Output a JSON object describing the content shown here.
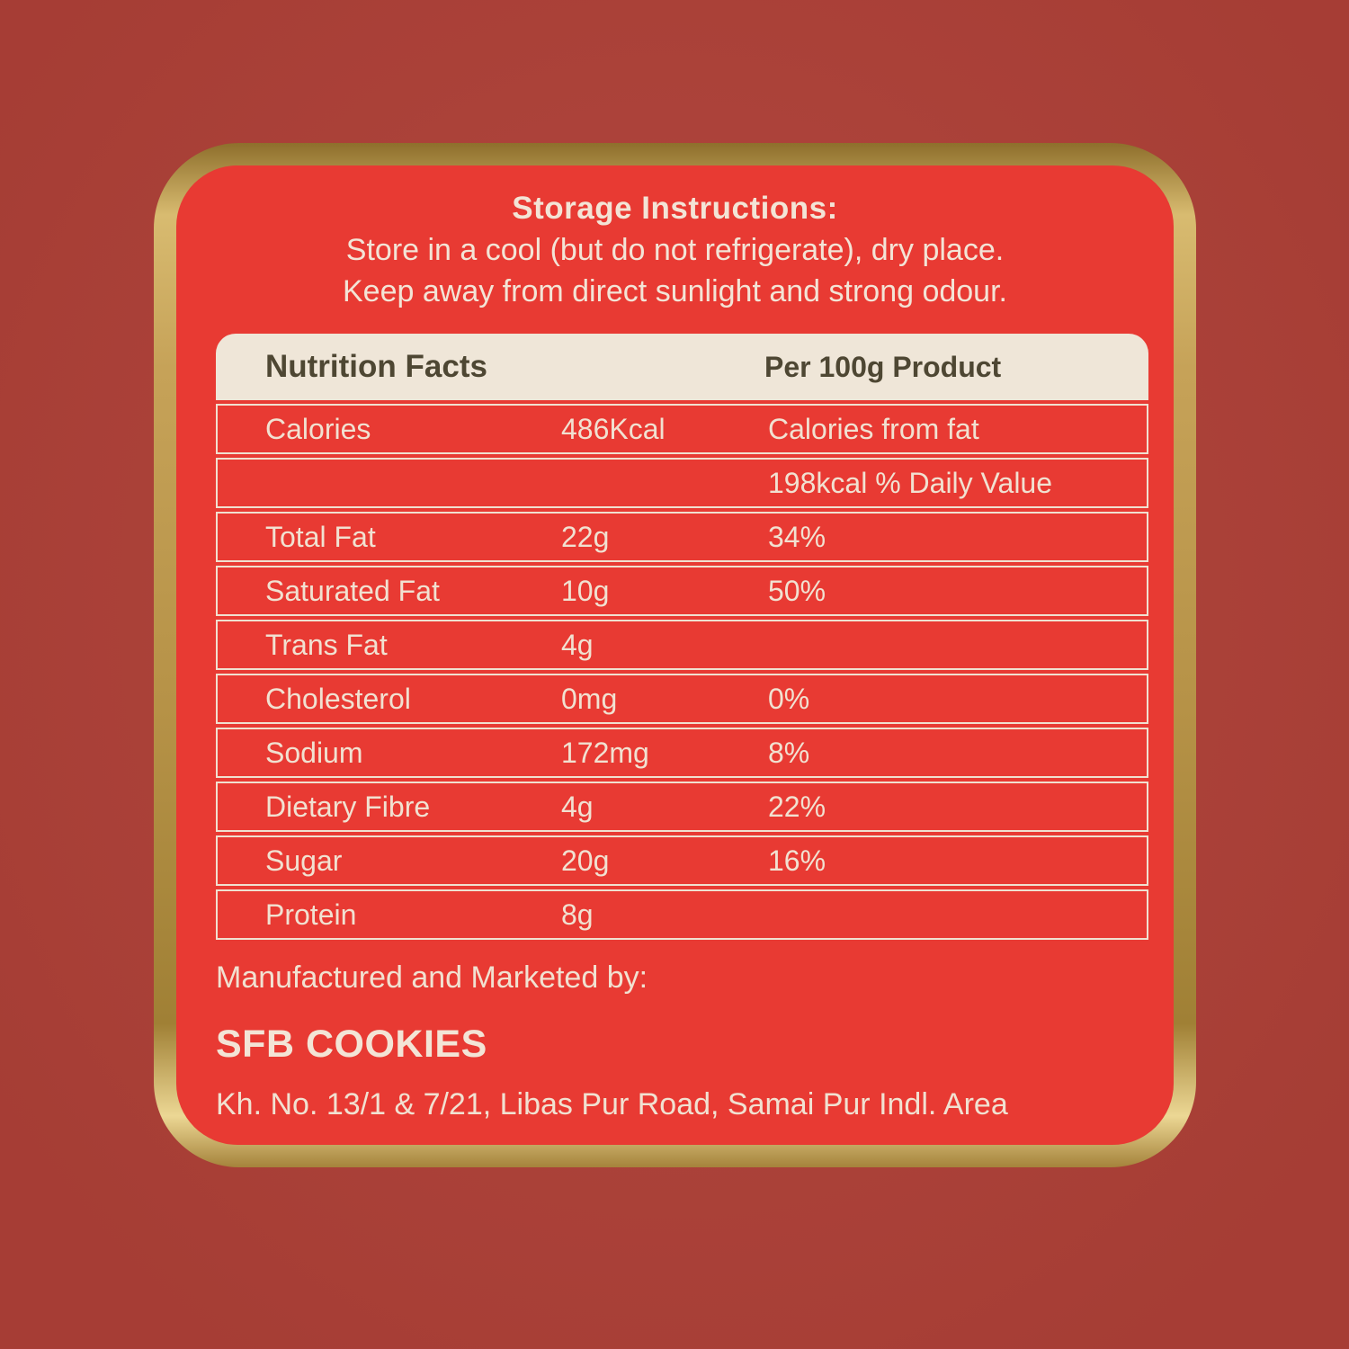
{
  "colors": {
    "background": "#b04138",
    "panel_red": "#e83a33",
    "gold_light": "#ecd794",
    "gold_dark": "#8e6f2c",
    "cream_text": "#f1e1d1",
    "table_header_bg": "#efe6d8",
    "table_header_text": "#4e4733"
  },
  "storage": {
    "title": "Storage Instructions:",
    "lines": [
      "Store in a cool (but do not refrigerate), dry place.",
      "Keep away from direct sunlight and strong odour."
    ]
  },
  "nutrition": {
    "header": {
      "left": "Nutrition Facts",
      "right": "Per 100g Product"
    },
    "rows": [
      {
        "label": "Calories",
        "amount": "486Kcal",
        "extra": "Calories from fat"
      },
      {
        "label": "",
        "amount": "",
        "extra": "198kcal % Daily Value"
      },
      {
        "label": "Total Fat",
        "amount": "22g",
        "extra": "34%"
      },
      {
        "label": "Saturated Fat",
        "amount": "10g",
        "extra": "50%"
      },
      {
        "label": "Trans Fat",
        "amount": "4g",
        "extra": ""
      },
      {
        "label": "Cholesterol",
        "amount": "0mg",
        "extra": "0%"
      },
      {
        "label": "Sodium",
        "amount": "172mg",
        "extra": "8%"
      },
      {
        "label": "Dietary Fibre",
        "amount": "4g",
        "extra": "22%"
      },
      {
        "label": "Sugar",
        "amount": "20g",
        "extra": "16%"
      },
      {
        "label": "Protein",
        "amount": "8g",
        "extra": ""
      }
    ]
  },
  "footer": {
    "intro": "Manufactured and Marketed by:",
    "company": "SFB COOKIES",
    "address": "Kh. No. 13/1 & 7/21, Libas Pur Road, Samai Pur Indl. Area"
  }
}
